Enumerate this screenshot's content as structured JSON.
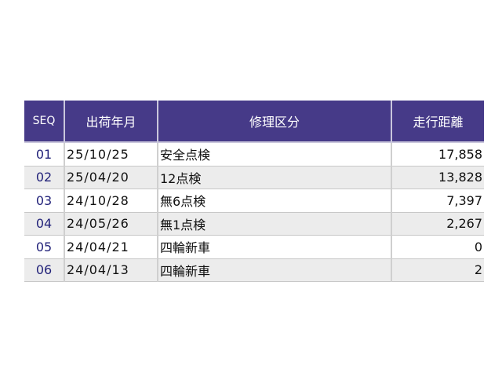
{
  "table": {
    "headers": [
      "SEQ",
      "出荷年月",
      "修理区分",
      "走行距離"
    ],
    "rows": [
      {
        "seq": "01",
        "date": "25/10/25",
        "category": "安全点検",
        "distance": "17,858"
      },
      {
        "seq": "02",
        "date": "25/04/20",
        "category": "12点検",
        "distance": "13,828"
      },
      {
        "seq": "03",
        "date": "24/10/28",
        "category": "無6点検",
        "distance": "7,397"
      },
      {
        "seq": "04",
        "date": "24/05/26",
        "category": "無1点検",
        "distance": "2,267"
      },
      {
        "seq": "05",
        "date": "24/04/21",
        "category": "四輪新車",
        "distance": "0"
      },
      {
        "seq": "06",
        "date": "24/04/13",
        "category": "四輪新車",
        "distance": "2"
      }
    ]
  },
  "colors": {
    "header_bg": "#463a88",
    "alt_row": "#ececec",
    "seq_text": "#23237a"
  }
}
